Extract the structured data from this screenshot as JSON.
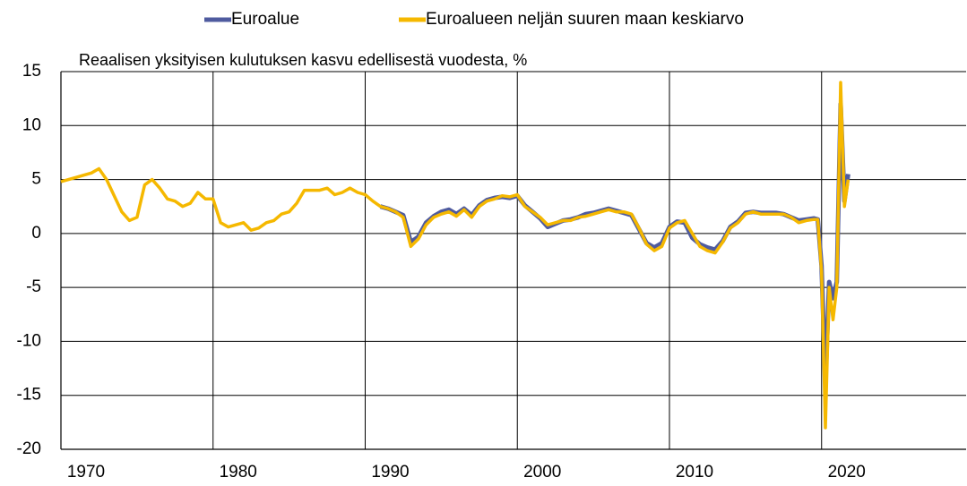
{
  "chart_data": {
    "type": "line",
    "subtitle": "Reaalisen yksityisen kulutuksen kasvu edellisestä vuodesta, %",
    "x": [
      1970.0,
      1970.5,
      1971.0,
      1971.5,
      1972.0,
      1972.5,
      1973.0,
      1973.5,
      1974.0,
      1974.5,
      1975.0,
      1975.5,
      1976.0,
      1976.5,
      1977.0,
      1977.5,
      1978.0,
      1978.5,
      1979.0,
      1979.5,
      1980.0,
      1980.5,
      1981.0,
      1981.5,
      1982.0,
      1982.5,
      1983.0,
      1983.5,
      1984.0,
      1984.5,
      1985.0,
      1985.5,
      1986.0,
      1986.5,
      1987.0,
      1987.5,
      1988.0,
      1988.5,
      1989.0,
      1989.5,
      1990.0,
      1990.5,
      1991.0,
      1991.5,
      1992.0,
      1992.5,
      1993.0,
      1993.5,
      1994.0,
      1994.5,
      1995.0,
      1995.5,
      1996.0,
      1996.5,
      1997.0,
      1997.5,
      1998.0,
      1998.5,
      1999.0,
      1999.5,
      2000.0,
      2000.5,
      2001.0,
      2001.5,
      2002.0,
      2002.5,
      2003.0,
      2003.5,
      2004.0,
      2004.5,
      2005.0,
      2005.5,
      2006.0,
      2006.5,
      2007.0,
      2007.5,
      2008.0,
      2008.5,
      2009.0,
      2009.5,
      2010.0,
      2010.5,
      2011.0,
      2011.5,
      2012.0,
      2012.5,
      2013.0,
      2013.5,
      2014.0,
      2014.5,
      2015.0,
      2015.5,
      2016.0,
      2016.5,
      2017.0,
      2017.5,
      2018.0,
      2018.5,
      2019.0,
      2019.5,
      2019.75,
      2020.0,
      2020.25,
      2020.5,
      2020.75,
      2021.0,
      2021.25,
      2021.5,
      2021.75
    ],
    "series": [
      {
        "name": "Euroalue",
        "color": "#4f5b9f",
        "values": [
          null,
          null,
          null,
          null,
          null,
          null,
          null,
          null,
          null,
          null,
          null,
          null,
          null,
          null,
          null,
          null,
          null,
          null,
          null,
          null,
          null,
          null,
          null,
          null,
          null,
          null,
          null,
          null,
          null,
          null,
          null,
          null,
          null,
          null,
          null,
          null,
          null,
          null,
          null,
          null,
          null,
          null,
          2.5,
          2.3,
          2.0,
          1.7,
          -0.8,
          -0.3,
          1.0,
          1.6,
          2.0,
          2.2,
          1.8,
          2.3,
          1.7,
          2.6,
          3.1,
          3.3,
          3.4,
          3.3,
          3.5,
          2.6,
          2.0,
          1.4,
          0.6,
          0.9,
          1.2,
          1.3,
          1.5,
          1.8,
          1.9,
          2.1,
          2.3,
          2.1,
          1.9,
          1.7,
          0.4,
          -0.9,
          -1.3,
          -0.9,
          0.6,
          1.1,
          1.0,
          -0.4,
          -1.0,
          -1.3,
          -1.5,
          -0.7,
          0.6,
          1.1,
          1.9,
          2.0,
          1.9,
          1.9,
          1.9,
          1.8,
          1.5,
          1.2,
          1.3,
          1.4,
          1.3,
          -3.0,
          -14,
          -4.5,
          -6,
          -4.5,
          12,
          3,
          5.5
        ]
      },
      {
        "name": "Euroalueen neljän suuren maan keskiarvo",
        "color": "#f5b800",
        "values": [
          4.8,
          5.0,
          5.2,
          5.4,
          5.6,
          6.0,
          5.0,
          3.5,
          2.0,
          1.2,
          1.5,
          4.5,
          5.0,
          4.2,
          3.2,
          3.0,
          2.5,
          2.8,
          3.8,
          3.2,
          3.2,
          1.0,
          0.6,
          0.8,
          1.0,
          0.3,
          0.5,
          1.0,
          1.2,
          1.8,
          2.0,
          2.8,
          4.0,
          4.0,
          4.0,
          4.2,
          3.6,
          3.8,
          4.2,
          3.8,
          3.6,
          3.0,
          2.5,
          2.3,
          2.0,
          1.5,
          -1.2,
          -0.5,
          0.8,
          1.5,
          1.8,
          2.0,
          1.6,
          2.2,
          1.5,
          2.5,
          3.0,
          3.2,
          3.5,
          3.4,
          3.6,
          2.5,
          2.0,
          1.5,
          0.8,
          1.0,
          1.2,
          1.2,
          1.5,
          1.6,
          1.8,
          2.0,
          2.2,
          2.0,
          2.0,
          1.8,
          0.5,
          -1.0,
          -1.6,
          -1.2,
          0.5,
          1.0,
          1.2,
          0.0,
          -1.2,
          -1.6,
          -1.8,
          -0.8,
          0.5,
          1.0,
          1.8,
          2.0,
          1.8,
          1.8,
          1.8,
          1.8,
          1.5,
          1.0,
          1.2,
          1.3,
          1.3,
          -3.5,
          -18,
          -5,
          -8,
          -5,
          14,
          2.5,
          5.0
        ]
      }
    ],
    "xlim": [
      1970,
      2029.5
    ],
    "xticks": [
      1970,
      1980,
      1990,
      2000,
      2010,
      2020
    ],
    "ylim": [
      -20,
      15
    ],
    "yticks": [
      -20,
      -15,
      -10,
      -5,
      0,
      5,
      10,
      15
    ],
    "grid": true,
    "legend": "top"
  }
}
